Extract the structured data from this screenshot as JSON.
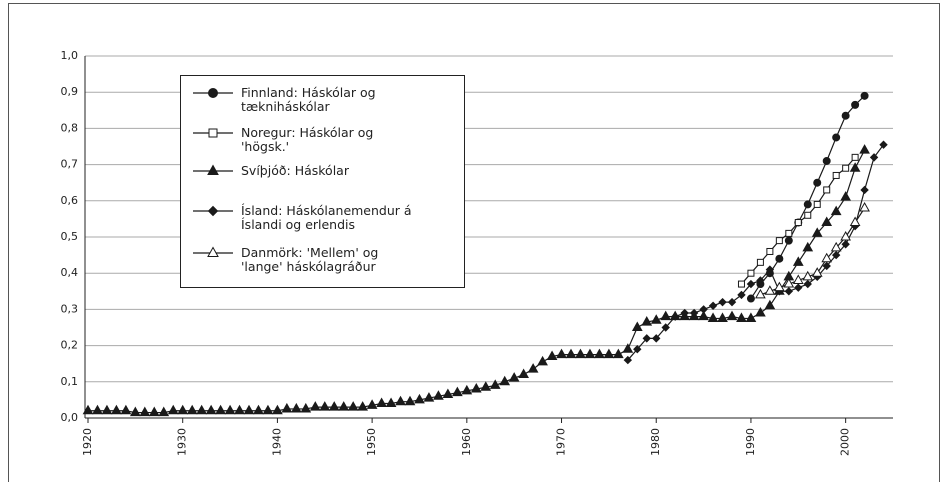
{
  "chart_data": {
    "type": "line",
    "xlim": [
      1920,
      2005
    ],
    "xticks": [
      1920,
      1930,
      1940,
      1950,
      1960,
      1970,
      1980,
      1990,
      2000
    ],
    "ylim": [
      0,
      1
    ],
    "yticks": [
      {
        "value": 0,
        "label": "0,0"
      },
      {
        "value": 0.1,
        "label": "0,1"
      },
      {
        "value": 0.2,
        "label": "0,2"
      },
      {
        "value": 0.3,
        "label": "0,3"
      },
      {
        "value": 0.4,
        "label": "0,4"
      },
      {
        "value": 0.5,
        "label": "0,5"
      },
      {
        "value": 0.6,
        "label": "0,6"
      },
      {
        "value": 0.7,
        "label": "0,7"
      },
      {
        "value": 0.8,
        "label": "0,8"
      },
      {
        "value": 0.9,
        "label": "0,9"
      },
      {
        "value": 1,
        "label": "1,0"
      }
    ],
    "grid": true,
    "series": [
      {
        "name": "Finnland: Háskólar og tækniháskólar",
        "color": "#1a1a1a",
        "marker": "circle",
        "x": [
          1990,
          1991,
          1992,
          1993,
          1994,
          1995,
          1996,
          1997,
          1998,
          1999,
          2000,
          2001,
          2002
        ],
        "values": [
          0.33,
          0.37,
          0.4,
          0.44,
          0.49,
          0.54,
          0.59,
          0.65,
          0.71,
          0.775,
          0.835,
          0.865,
          0.89
        ]
      },
      {
        "name": "Noregur: Háskólar og 'högsk.'",
        "color": "#1a1a1a",
        "marker": "square-open",
        "x": [
          1989,
          1990,
          1991,
          1992,
          1993,
          1994,
          1995,
          1996,
          1997,
          1998,
          1999,
          2000,
          2001
        ],
        "values": [
          0.37,
          0.4,
          0.43,
          0.46,
          0.49,
          0.51,
          0.54,
          0.56,
          0.59,
          0.63,
          0.67,
          0.69,
          0.72
        ]
      },
      {
        "name": "Svíþjóð: Háskólar",
        "color": "#1a1a1a",
        "marker": "triangle",
        "x": [
          1920,
          1921,
          1922,
          1923,
          1924,
          1925,
          1926,
          1927,
          1928,
          1929,
          1930,
          1931,
          1932,
          1933,
          1934,
          1935,
          1936,
          1937,
          1938,
          1939,
          1940,
          1941,
          1942,
          1943,
          1944,
          1945,
          1946,
          1947,
          1948,
          1949,
          1950,
          1951,
          1952,
          1953,
          1954,
          1955,
          1956,
          1957,
          1958,
          1959,
          1960,
          1961,
          1962,
          1963,
          1964,
          1965,
          1966,
          1967,
          1968,
          1969,
          1970,
          1971,
          1972,
          1973,
          1974,
          1975,
          1976,
          1977,
          1978,
          1979,
          1980,
          1981,
          1982,
          1983,
          1984,
          1985,
          1986,
          1987,
          1988,
          1989,
          1990,
          1991,
          1992,
          1993,
          1994,
          1995,
          1996,
          1997,
          1998,
          1999,
          2000,
          2001,
          2002
        ],
        "values": [
          0.02,
          0.02,
          0.02,
          0.02,
          0.02,
          0.015,
          0.015,
          0.015,
          0.015,
          0.02,
          0.02,
          0.02,
          0.02,
          0.02,
          0.02,
          0.02,
          0.02,
          0.02,
          0.02,
          0.02,
          0.02,
          0.025,
          0.025,
          0.025,
          0.03,
          0.03,
          0.03,
          0.03,
          0.03,
          0.03,
          0.035,
          0.04,
          0.04,
          0.045,
          0.045,
          0.05,
          0.055,
          0.06,
          0.065,
          0.07,
          0.075,
          0.08,
          0.085,
          0.09,
          0.1,
          0.11,
          0.12,
          0.135,
          0.155,
          0.17,
          0.175,
          0.175,
          0.175,
          0.175,
          0.175,
          0.175,
          0.175,
          0.19,
          0.25,
          0.265,
          0.27,
          0.28,
          0.28,
          0.28,
          0.28,
          0.28,
          0.275,
          0.275,
          0.28,
          0.275,
          0.275,
          0.29,
          0.31,
          0.35,
          0.39,
          0.43,
          0.47,
          0.51,
          0.54,
          0.57,
          0.61,
          0.69,
          0.74
        ]
      },
      {
        "name": "Ísland: Háskólanemendur á Íslandi og erlendis",
        "color": "#1a1a1a",
        "marker": "diamond",
        "x": [
          1977,
          1978,
          1979,
          1980,
          1981,
          1982,
          1983,
          1984,
          1985,
          1986,
          1987,
          1988,
          1989,
          1990,
          1991,
          1992,
          1993,
          1994,
          1995,
          1996,
          1997,
          1998,
          1999,
          2000,
          2001,
          2002,
          2003,
          2004
        ],
        "values": [
          0.16,
          0.19,
          0.22,
          0.22,
          0.25,
          0.28,
          0.29,
          0.29,
          0.3,
          0.31,
          0.32,
          0.32,
          0.34,
          0.37,
          0.38,
          0.41,
          0.35,
          0.35,
          0.36,
          0.37,
          0.39,
          0.42,
          0.45,
          0.48,
          0.53,
          0.63,
          0.72,
          0.755
        ]
      },
      {
        "name": "Danmörk: 'Mellem' og 'lange' háskólagráður",
        "color": "#1a1a1a",
        "marker": "triangle-open",
        "x": [
          1991,
          1992,
          1993,
          1994,
          1995,
          1996,
          1997,
          1998,
          1999,
          2000,
          2001,
          2002
        ],
        "values": [
          0.34,
          0.35,
          0.36,
          0.37,
          0.38,
          0.39,
          0.4,
          0.44,
          0.47,
          0.5,
          0.54,
          0.58
        ]
      }
    ]
  }
}
